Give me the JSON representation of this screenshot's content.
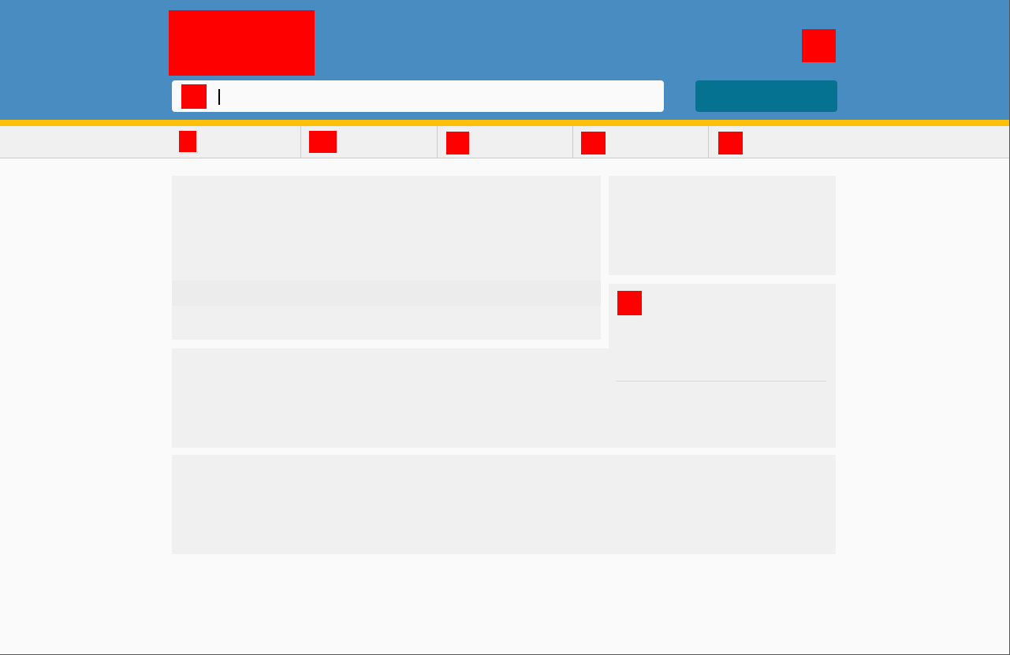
{
  "header": {
    "logo_icon": "logo-icon",
    "account_icon": "account-icon",
    "search": {
      "icon": "search-icon",
      "value": "",
      "placeholder": ""
    },
    "search_button_label": ""
  },
  "colors": {
    "header_bg": "#498cc2",
    "accent": "#ffc107",
    "button_bg": "#067292",
    "nav_bg": "#f0f0f0",
    "panel_bg": "#f0f0f0",
    "placeholder_icon": "#ff0000"
  },
  "nav": {
    "items": [
      {
        "icon": "nav-icon-1",
        "label": ""
      },
      {
        "icon": "nav-icon-2",
        "label": ""
      },
      {
        "icon": "nav-icon-3",
        "label": ""
      },
      {
        "icon": "nav-icon-4",
        "label": ""
      },
      {
        "icon": "nav-icon-5",
        "label": ""
      }
    ]
  },
  "sidebar": {
    "widget_icon": "widget-icon"
  }
}
